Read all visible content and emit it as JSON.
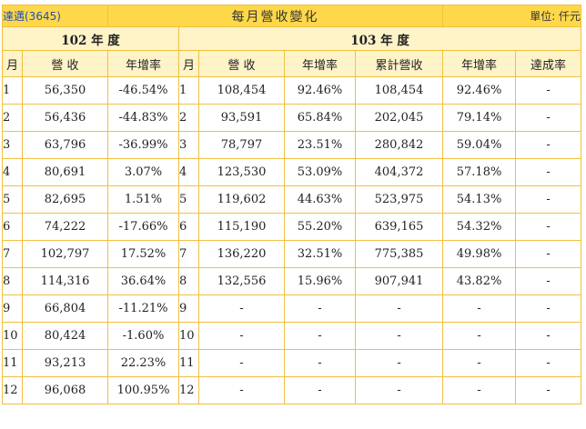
{
  "title_bar": {
    "stock_link": "達邁(3645)",
    "title": "每月營收變化",
    "unit": "單位: 仟元"
  },
  "years": {
    "y102": "102 年 度",
    "y103": "103 年 度"
  },
  "headers": {
    "month_a": "月",
    "revenue_a": "營 收",
    "yoy_a": "年增率",
    "month_b": "月",
    "revenue_b": "營 收",
    "yoy_b": "年增率",
    "cumulative": "累計營收",
    "cum_yoy": "年增率",
    "achievement": "達成率"
  },
  "rows": [
    {
      "m102": "1",
      "r102": "56,350",
      "y102": "-46.54%",
      "m103": "1",
      "r103": "108,454",
      "y103": "92.46%",
      "cum": "108,454",
      "cumy": "92.46%",
      "ach": "-"
    },
    {
      "m102": "2",
      "r102": "56,436",
      "y102": "-44.83%",
      "m103": "2",
      "r103": "93,591",
      "y103": "65.84%",
      "cum": "202,045",
      "cumy": "79.14%",
      "ach": "-"
    },
    {
      "m102": "3",
      "r102": "63,796",
      "y102": "-36.99%",
      "m103": "3",
      "r103": "78,797",
      "y103": "23.51%",
      "cum": "280,842",
      "cumy": "59.04%",
      "ach": "-"
    },
    {
      "m102": "4",
      "r102": "80,691",
      "y102": "3.07%",
      "m103": "4",
      "r103": "123,530",
      "y103": "53.09%",
      "cum": "404,372",
      "cumy": "57.18%",
      "ach": "-"
    },
    {
      "m102": "5",
      "r102": "82,695",
      "y102": "1.51%",
      "m103": "5",
      "r103": "119,602",
      "y103": "44.63%",
      "cum": "523,975",
      "cumy": "54.13%",
      "ach": "-"
    },
    {
      "m102": "6",
      "r102": "74,222",
      "y102": "-17.66%",
      "m103": "6",
      "r103": "115,190",
      "y103": "55.20%",
      "cum": "639,165",
      "cumy": "54.32%",
      "ach": "-"
    },
    {
      "m102": "7",
      "r102": "102,797",
      "y102": "17.52%",
      "m103": "7",
      "r103": "136,220",
      "y103": "32.51%",
      "cum": "775,385",
      "cumy": "49.98%",
      "ach": "-"
    },
    {
      "m102": "8",
      "r102": "114,316",
      "y102": "36.64%",
      "m103": "8",
      "r103": "132,556",
      "y103": "15.96%",
      "cum": "907,941",
      "cumy": "43.82%",
      "ach": "-"
    },
    {
      "m102": "9",
      "r102": "66,804",
      "y102": "-11.21%",
      "m103": "9",
      "r103": "-",
      "y103": "-",
      "cum": "-",
      "cumy": "-",
      "ach": "-"
    },
    {
      "m102": "10",
      "r102": "80,424",
      "y102": "-1.60%",
      "m103": "10",
      "r103": "-",
      "y103": "-",
      "cum": "-",
      "cumy": "-",
      "ach": "-"
    },
    {
      "m102": "11",
      "r102": "93,213",
      "y102": "22.23%",
      "m103": "11",
      "r103": "-",
      "y103": "-",
      "cum": "-",
      "cumy": "-",
      "ach": "-"
    },
    {
      "m102": "12",
      "r102": "96,068",
      "y102": "100.95%",
      "m103": "12",
      "r103": "-",
      "y103": "-",
      "cum": "-",
      "cumy": "-",
      "ach": "-"
    }
  ]
}
